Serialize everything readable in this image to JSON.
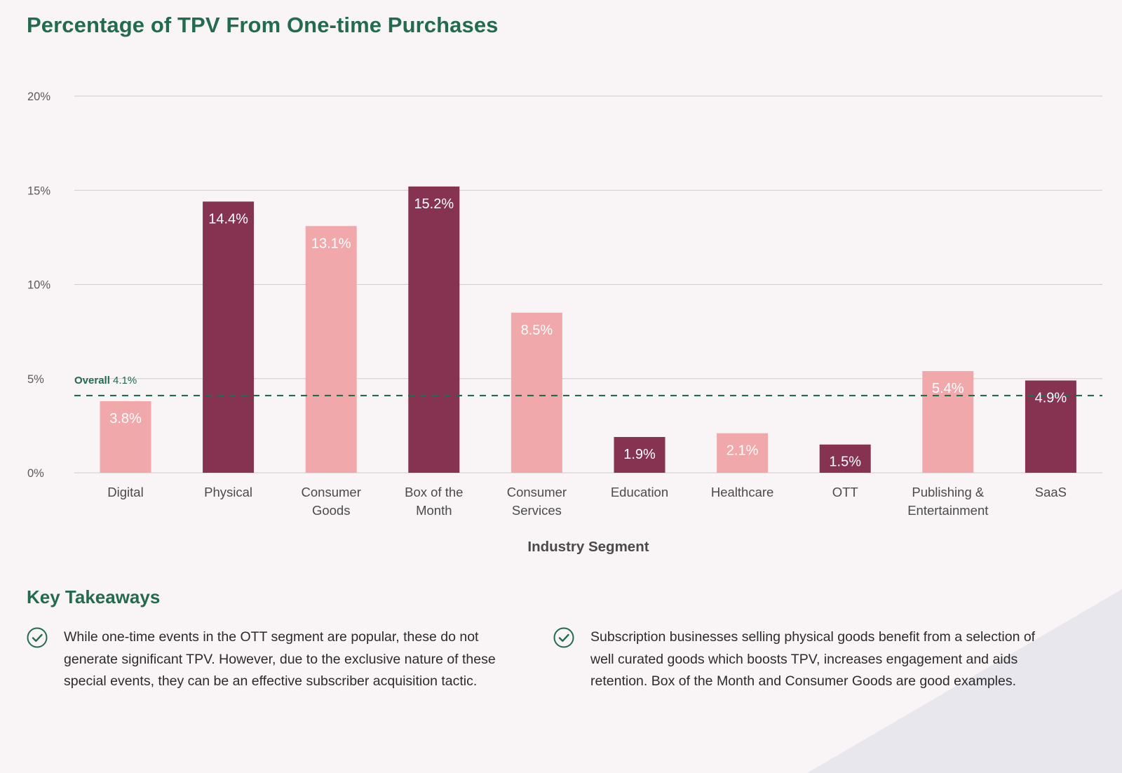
{
  "page_title": "Percentage of TPV From One-time Purchases",
  "colors": {
    "title_green": "#236b4f",
    "bar_dark": "#863352",
    "bar_light": "#f0a8aa",
    "reference_line": "#236b4f",
    "gridline": "#cfcbcc",
    "background": "#f9f4f5",
    "corner_shape": "#e8e7ee"
  },
  "chart_data": {
    "type": "bar",
    "title": "Percentage of TPV From One-time Purchases",
    "xlabel": "Industry Segment",
    "ylabel": "",
    "ylim": [
      0,
      20
    ],
    "yticks": [
      0,
      5,
      10,
      15,
      20
    ],
    "ytick_labels": [
      "0%",
      "5%",
      "10%",
      "15%",
      "20%"
    ],
    "grid": true,
    "categories": [
      [
        "Digital"
      ],
      [
        "Physical"
      ],
      [
        "Consumer",
        "Goods"
      ],
      [
        "Box of the",
        "Month"
      ],
      [
        "Consumer",
        "Services"
      ],
      [
        "Education"
      ],
      [
        "Healthcare"
      ],
      [
        "OTT"
      ],
      [
        "Publishing &",
        "Entertainment"
      ],
      [
        "SaaS"
      ]
    ],
    "values": [
      3.8,
      14.4,
      13.1,
      15.2,
      8.5,
      1.9,
      2.1,
      1.5,
      5.4,
      4.9
    ],
    "data_labels": [
      "3.8%",
      "14.4%",
      "13.1%",
      "15.2%",
      "8.5%",
      "1.9%",
      "2.1%",
      "1.5%",
      "5.4%",
      "4.9%"
    ],
    "bar_shades": [
      "light",
      "dark",
      "light",
      "dark",
      "light",
      "dark",
      "light",
      "dark",
      "light",
      "dark"
    ],
    "reference_line": {
      "label": "Overall",
      "value": 4.1,
      "value_label": "4.1%",
      "style": "dashed"
    }
  },
  "takeaways": {
    "title": "Key Takeaways",
    "items": [
      {
        "icon": "check-circle-icon",
        "text": "While one-time events in the OTT segment are popular, these do not generate significant TPV. However, due to the exclusive nature of these special events, they can be an effective subscriber acquisition tactic."
      },
      {
        "icon": "check-circle-icon",
        "text": "Subscription businesses selling physical goods benefit from a selection of well curated goods which boosts TPV, increases engagement and aids retention. Box of the Month and Consumer Goods are good examples."
      }
    ]
  }
}
